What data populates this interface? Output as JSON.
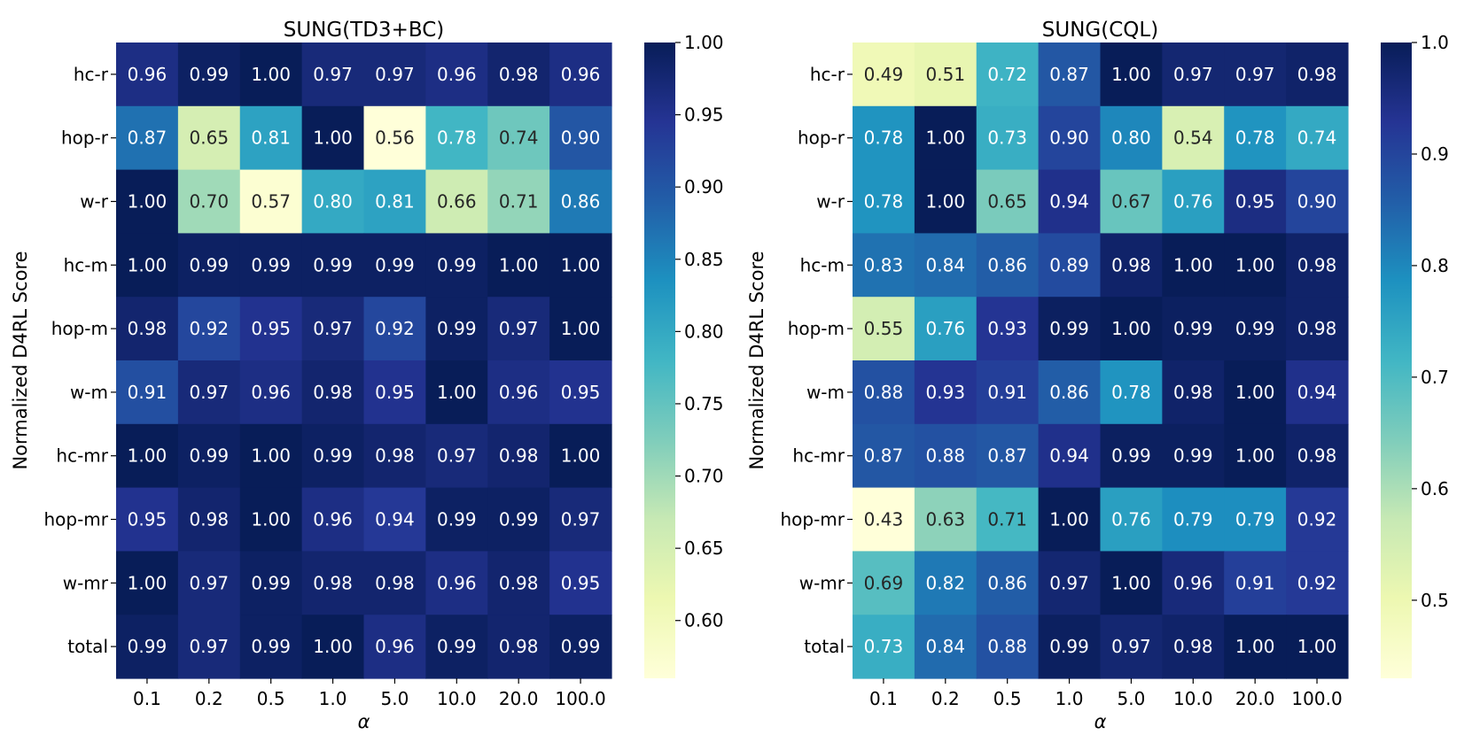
{
  "chart_data": [
    {
      "type": "heatmap",
      "title": "SUNG(TD3+BC)",
      "xlabel": "α",
      "ylabel": "Normalized D4RL Score",
      "x_categories": [
        "0.1",
        "0.2",
        "0.5",
        "1.0",
        "5.0",
        "10.0",
        "20.0",
        "100.0"
      ],
      "y_categories": [
        "hc-r",
        "hop-r",
        "w-r",
        "hc-m",
        "hop-m",
        "w-m",
        "hc-mr",
        "hop-mr",
        "w-mr",
        "total"
      ],
      "values": [
        [
          "0.96",
          "0.99",
          "1.00",
          "0.97",
          "0.97",
          "0.96",
          "0.98",
          "0.96"
        ],
        [
          "0.87",
          "0.65",
          "0.81",
          "1.00",
          "0.56",
          "0.78",
          "0.74",
          "0.90"
        ],
        [
          "1.00",
          "0.70",
          "0.57",
          "0.80",
          "0.81",
          "0.66",
          "0.71",
          "0.86"
        ],
        [
          "1.00",
          "0.99",
          "0.99",
          "0.99",
          "0.99",
          "0.99",
          "1.00",
          "1.00"
        ],
        [
          "0.98",
          "0.92",
          "0.95",
          "0.97",
          "0.92",
          "0.99",
          "0.97",
          "1.00"
        ],
        [
          "0.91",
          "0.97",
          "0.96",
          "0.98",
          "0.95",
          "1.00",
          "0.96",
          "0.95"
        ],
        [
          "1.00",
          "0.99",
          "1.00",
          "0.99",
          "0.98",
          "0.97",
          "0.98",
          "1.00"
        ],
        [
          "0.95",
          "0.98",
          "1.00",
          "0.96",
          "0.94",
          "0.99",
          "0.99",
          "0.97"
        ],
        [
          "1.00",
          "0.97",
          "0.99",
          "0.98",
          "0.98",
          "0.96",
          "0.98",
          "0.95"
        ],
        [
          "0.99",
          "0.97",
          "0.99",
          "1.00",
          "0.96",
          "0.99",
          "0.98",
          "0.99"
        ]
      ],
      "colorbar": {
        "range": [
          0.56,
          1.0
        ],
        "ticks": [
          "0.60",
          "0.65",
          "0.70",
          "0.75",
          "0.80",
          "0.85",
          "0.90",
          "0.95",
          "1.00"
        ],
        "colormap": "YlGnBu"
      }
    },
    {
      "type": "heatmap",
      "title": "SUNG(CQL)",
      "xlabel": "α",
      "ylabel": "Normalized D4RL Score",
      "x_categories": [
        "0.1",
        "0.2",
        "0.5",
        "1.0",
        "5.0",
        "10.0",
        "20.0",
        "100.0"
      ],
      "y_categories": [
        "hc-r",
        "hop-r",
        "w-r",
        "hc-m",
        "hop-m",
        "w-m",
        "hc-mr",
        "hop-mr",
        "w-mr",
        "total"
      ],
      "values": [
        [
          "0.49",
          "0.51",
          "0.72",
          "0.87",
          "1.00",
          "0.97",
          "0.97",
          "0.98"
        ],
        [
          "0.78",
          "1.00",
          "0.73",
          "0.90",
          "0.80",
          "0.54",
          "0.78",
          "0.74"
        ],
        [
          "0.78",
          "1.00",
          "0.65",
          "0.94",
          "0.67",
          "0.76",
          "0.95",
          "0.90"
        ],
        [
          "0.83",
          "0.84",
          "0.86",
          "0.89",
          "0.98",
          "1.00",
          "1.00",
          "0.98"
        ],
        [
          "0.55",
          "0.76",
          "0.93",
          "0.99",
          "1.00",
          "0.99",
          "0.99",
          "0.98"
        ],
        [
          "0.88",
          "0.93",
          "0.91",
          "0.86",
          "0.78",
          "0.98",
          "1.00",
          "0.94"
        ],
        [
          "0.87",
          "0.88",
          "0.87",
          "0.94",
          "0.99",
          "0.99",
          "1.00",
          "0.98"
        ],
        [
          "0.43",
          "0.63",
          "0.71",
          "1.00",
          "0.76",
          "0.79",
          "0.79",
          "0.92"
        ],
        [
          "0.69",
          "0.82",
          "0.86",
          "0.97",
          "1.00",
          "0.96",
          "0.91",
          "0.92"
        ],
        [
          "0.73",
          "0.84",
          "0.88",
          "0.99",
          "0.97",
          "0.98",
          "1.00",
          "1.00"
        ]
      ],
      "colorbar": {
        "range": [
          0.43,
          1.0
        ],
        "ticks": [
          "0.5",
          "0.6",
          "0.7",
          "0.8",
          "0.9",
          "1.0"
        ],
        "colormap": "YlGnBu"
      }
    }
  ]
}
